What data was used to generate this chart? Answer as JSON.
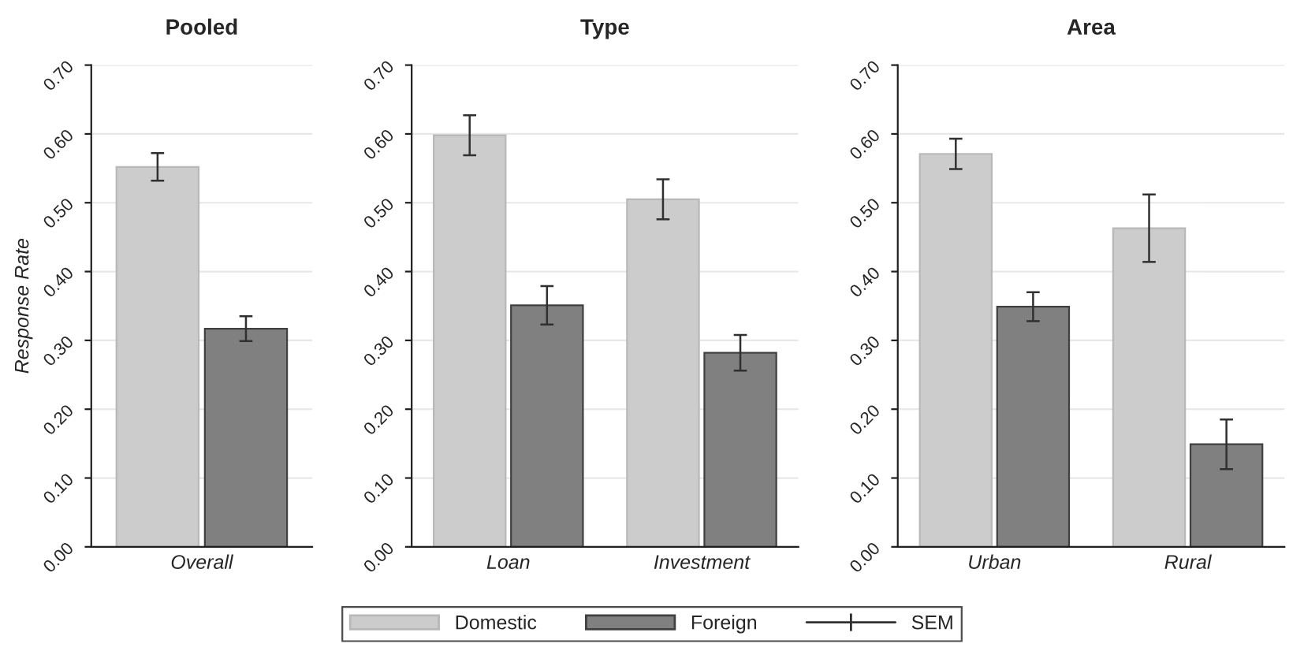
{
  "chart_data": [
    {
      "type": "bar",
      "title": "Pooled",
      "ylabel": "Response Rate",
      "categories": [
        "Overall"
      ],
      "ylim": [
        0,
        0.7
      ],
      "yticks": [
        {
          "value": 0,
          "label": "0.00"
        },
        {
          "value": 0.1,
          "label": "0.10"
        },
        {
          "value": 0.2,
          "label": "0.20"
        },
        {
          "value": 0.3,
          "label": "0.30"
        },
        {
          "value": 0.4,
          "label": "0.40"
        },
        {
          "value": 0.5,
          "label": "0.50"
        },
        {
          "value": 0.6,
          "label": "0.60"
        },
        {
          "value": 0.7,
          "label": "0.70"
        }
      ],
      "grid": "y",
      "legend": "bottom",
      "annotations": [
        "SEM"
      ],
      "series": [
        {
          "name": "Domestic",
          "color": "#cccccc",
          "values": [
            0.552
          ],
          "errors": [
            0.02
          ]
        },
        {
          "name": "Foreign",
          "color": "#808080",
          "values": [
            0.317
          ],
          "errors": [
            0.018
          ]
        }
      ]
    },
    {
      "type": "bar",
      "title": "Type",
      "categories": [
        "Loan",
        "Investment"
      ],
      "ylim": [
        0,
        0.7
      ],
      "yticks": [
        {
          "value": 0,
          "label": "0.00"
        },
        {
          "value": 0.1,
          "label": "0.10"
        },
        {
          "value": 0.2,
          "label": "0.20"
        },
        {
          "value": 0.3,
          "label": "0.30"
        },
        {
          "value": 0.4,
          "label": "0.40"
        },
        {
          "value": 0.5,
          "label": "0.50"
        },
        {
          "value": 0.6,
          "label": "0.60"
        },
        {
          "value": 0.7,
          "label": "0.70"
        }
      ],
      "grid": "y",
      "series": [
        {
          "name": "Domestic",
          "color": "#cccccc",
          "values": [
            0.598,
            0.505
          ],
          "errors": [
            0.029,
            0.029
          ]
        },
        {
          "name": "Foreign",
          "color": "#808080",
          "values": [
            0.351,
            0.282
          ],
          "errors": [
            0.028,
            0.026
          ]
        }
      ]
    },
    {
      "type": "bar",
      "title": "Area",
      "categories": [
        "Urban",
        "Rural"
      ],
      "ylim": [
        0,
        0.7
      ],
      "yticks": [
        {
          "value": 0,
          "label": "0.00"
        },
        {
          "value": 0.1,
          "label": "0.10"
        },
        {
          "value": 0.2,
          "label": "0.20"
        },
        {
          "value": 0.3,
          "label": "0.30"
        },
        {
          "value": 0.4,
          "label": "0.40"
        },
        {
          "value": 0.5,
          "label": "0.50"
        },
        {
          "value": 0.6,
          "label": "0.60"
        },
        {
          "value": 0.7,
          "label": "0.70"
        }
      ],
      "grid": "y",
      "series": [
        {
          "name": "Domestic",
          "color": "#cccccc",
          "values": [
            0.571,
            0.463
          ],
          "errors": [
            0.022,
            0.049
          ]
        },
        {
          "name": "Foreign",
          "color": "#808080",
          "values": [
            0.349,
            0.149
          ],
          "errors": [
            0.021,
            0.036
          ]
        }
      ]
    }
  ]
}
